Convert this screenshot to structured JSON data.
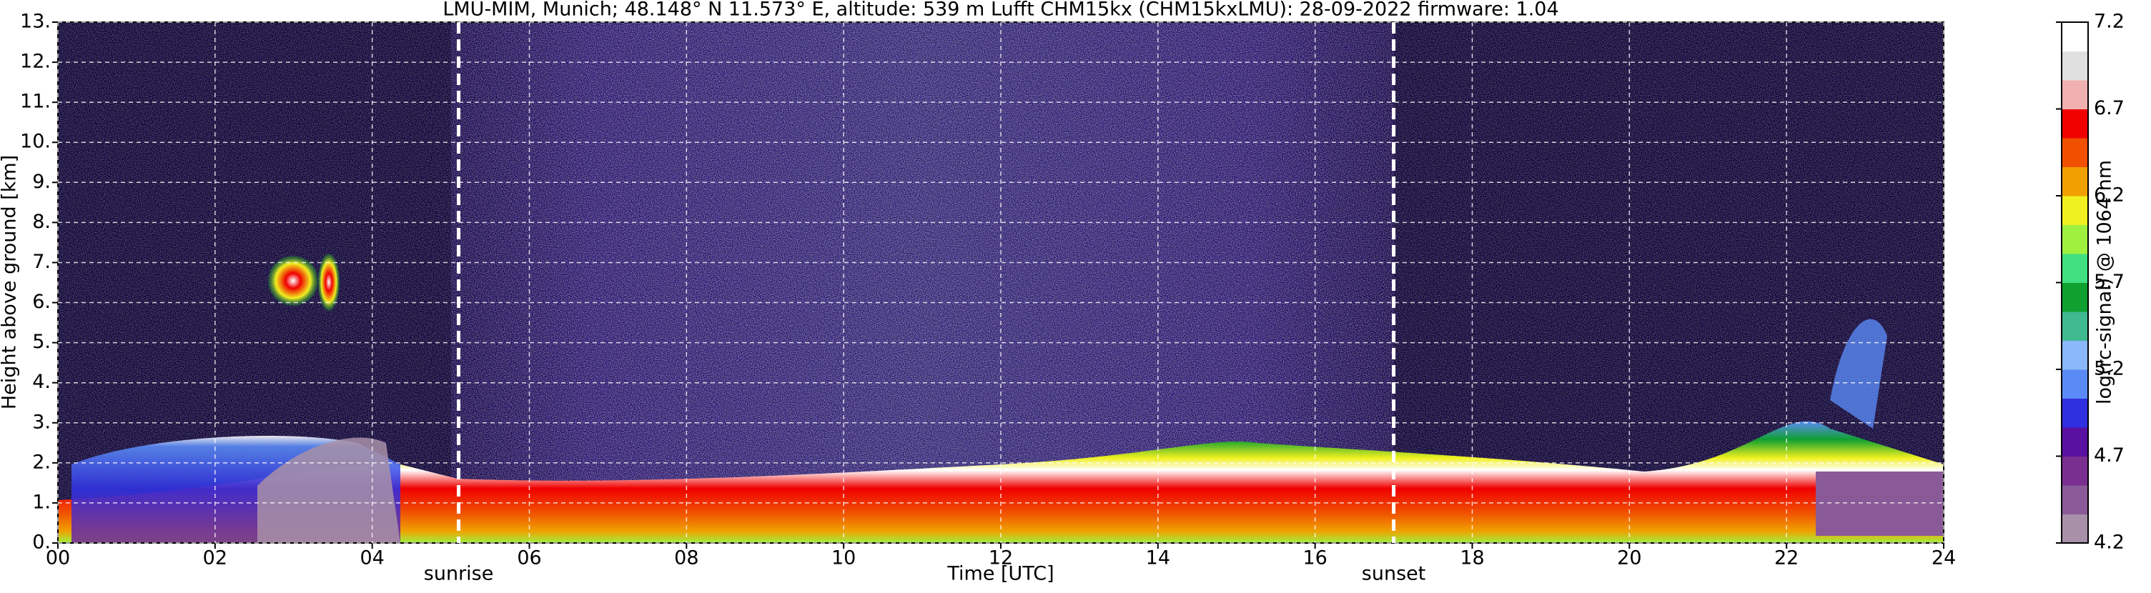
{
  "chart_data": {
    "type": "heatmap",
    "title": "LMU-MIM, Munich; 48.148° N 11.573° E, altitude: 539 m    Lufft CHM15kx (CHM15kxLMU): 28-09-2022    firmware: 1.04",
    "x_label": "Time [UTC]",
    "y_label": "Height above ground [km]",
    "xlim": [
      0,
      24
    ],
    "xticks": [
      {
        "value": 0,
        "label": "00"
      },
      {
        "value": 2,
        "label": "02"
      },
      {
        "value": 4,
        "label": "04"
      },
      {
        "value": 6,
        "label": "06"
      },
      {
        "value": 8,
        "label": "08"
      },
      {
        "value": 10,
        "label": "10"
      },
      {
        "value": 12,
        "label": "12"
      },
      {
        "value": 14,
        "label": "14"
      },
      {
        "value": 16,
        "label": "16"
      },
      {
        "value": 18,
        "label": "18"
      },
      {
        "value": 20,
        "label": "20"
      },
      {
        "value": 22,
        "label": "22"
      },
      {
        "value": 24,
        "label": "24"
      }
    ],
    "ylim": [
      0,
      13
    ],
    "yticks": [
      {
        "value": 0,
        "label": "0."
      },
      {
        "value": 1,
        "label": "1."
      },
      {
        "value": 2,
        "label": "2."
      },
      {
        "value": 3,
        "label": "3."
      },
      {
        "value": 4,
        "label": "4."
      },
      {
        "value": 5,
        "label": "5."
      },
      {
        "value": 6,
        "label": "6."
      },
      {
        "value": 7,
        "label": "7."
      },
      {
        "value": 8,
        "label": "8."
      },
      {
        "value": 9,
        "label": "9."
      },
      {
        "value": 10,
        "label": "10."
      },
      {
        "value": 11,
        "label": "11."
      },
      {
        "value": 12,
        "label": "12."
      },
      {
        "value": 13,
        "label": "13."
      }
    ],
    "grid": true,
    "annotations": [
      {
        "text": "sunrise",
        "x": 5.1
      },
      {
        "text": "sunset",
        "x": 17.0
      }
    ],
    "colorbar": {
      "label": "log(rc-signal) @ 1064 nm",
      "lim": [
        4.2,
        7.2
      ],
      "ticks": [
        4.2,
        4.7,
        5.2,
        5.7,
        6.2,
        6.7,
        7.2
      ],
      "colors": [
        "#a890a8",
        "#8a5a98",
        "#7a2f90",
        "#5a10a0",
        "#3030e0",
        "#5a8af5",
        "#8ab8f8",
        "#40b890",
        "#10a030",
        "#40e080",
        "#a0f040",
        "#f0f020",
        "#f0a000",
        "#f05000",
        "#f00000",
        "#f0b0b0",
        "#e0e0e0",
        "#ffffff"
      ]
    }
  }
}
